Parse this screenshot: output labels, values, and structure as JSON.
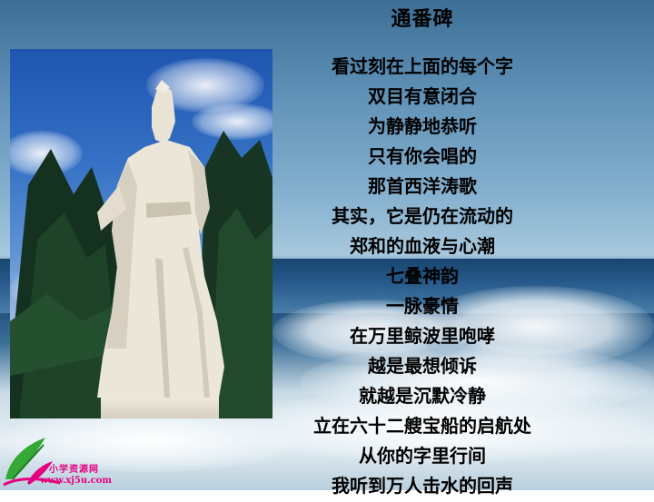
{
  "poem": {
    "title": "通番碑",
    "lines": [
      "看过刻在上面的每个字",
      "双目有意闭合",
      "为静静地恭听",
      "只有你会唱的",
      "那首西洋涛歌",
      "其实，它是仍在流动的",
      "郑和的血液与心潮",
      "七叠神韵",
      "一脉豪情",
      "在万里鲸波里咆哮",
      "越是最想倾诉",
      "就越是沉默冷静",
      "立在六十二艘宝船的启航处",
      "从你的字里行间",
      "我听到万人击水的回声"
    ]
  },
  "logo": {
    "name": "小学资源网",
    "url": "www.xj5u.com"
  },
  "colors": {
    "logo_accent": "#e4007f",
    "logo_leaf": "#35a836",
    "text": "#000000"
  }
}
